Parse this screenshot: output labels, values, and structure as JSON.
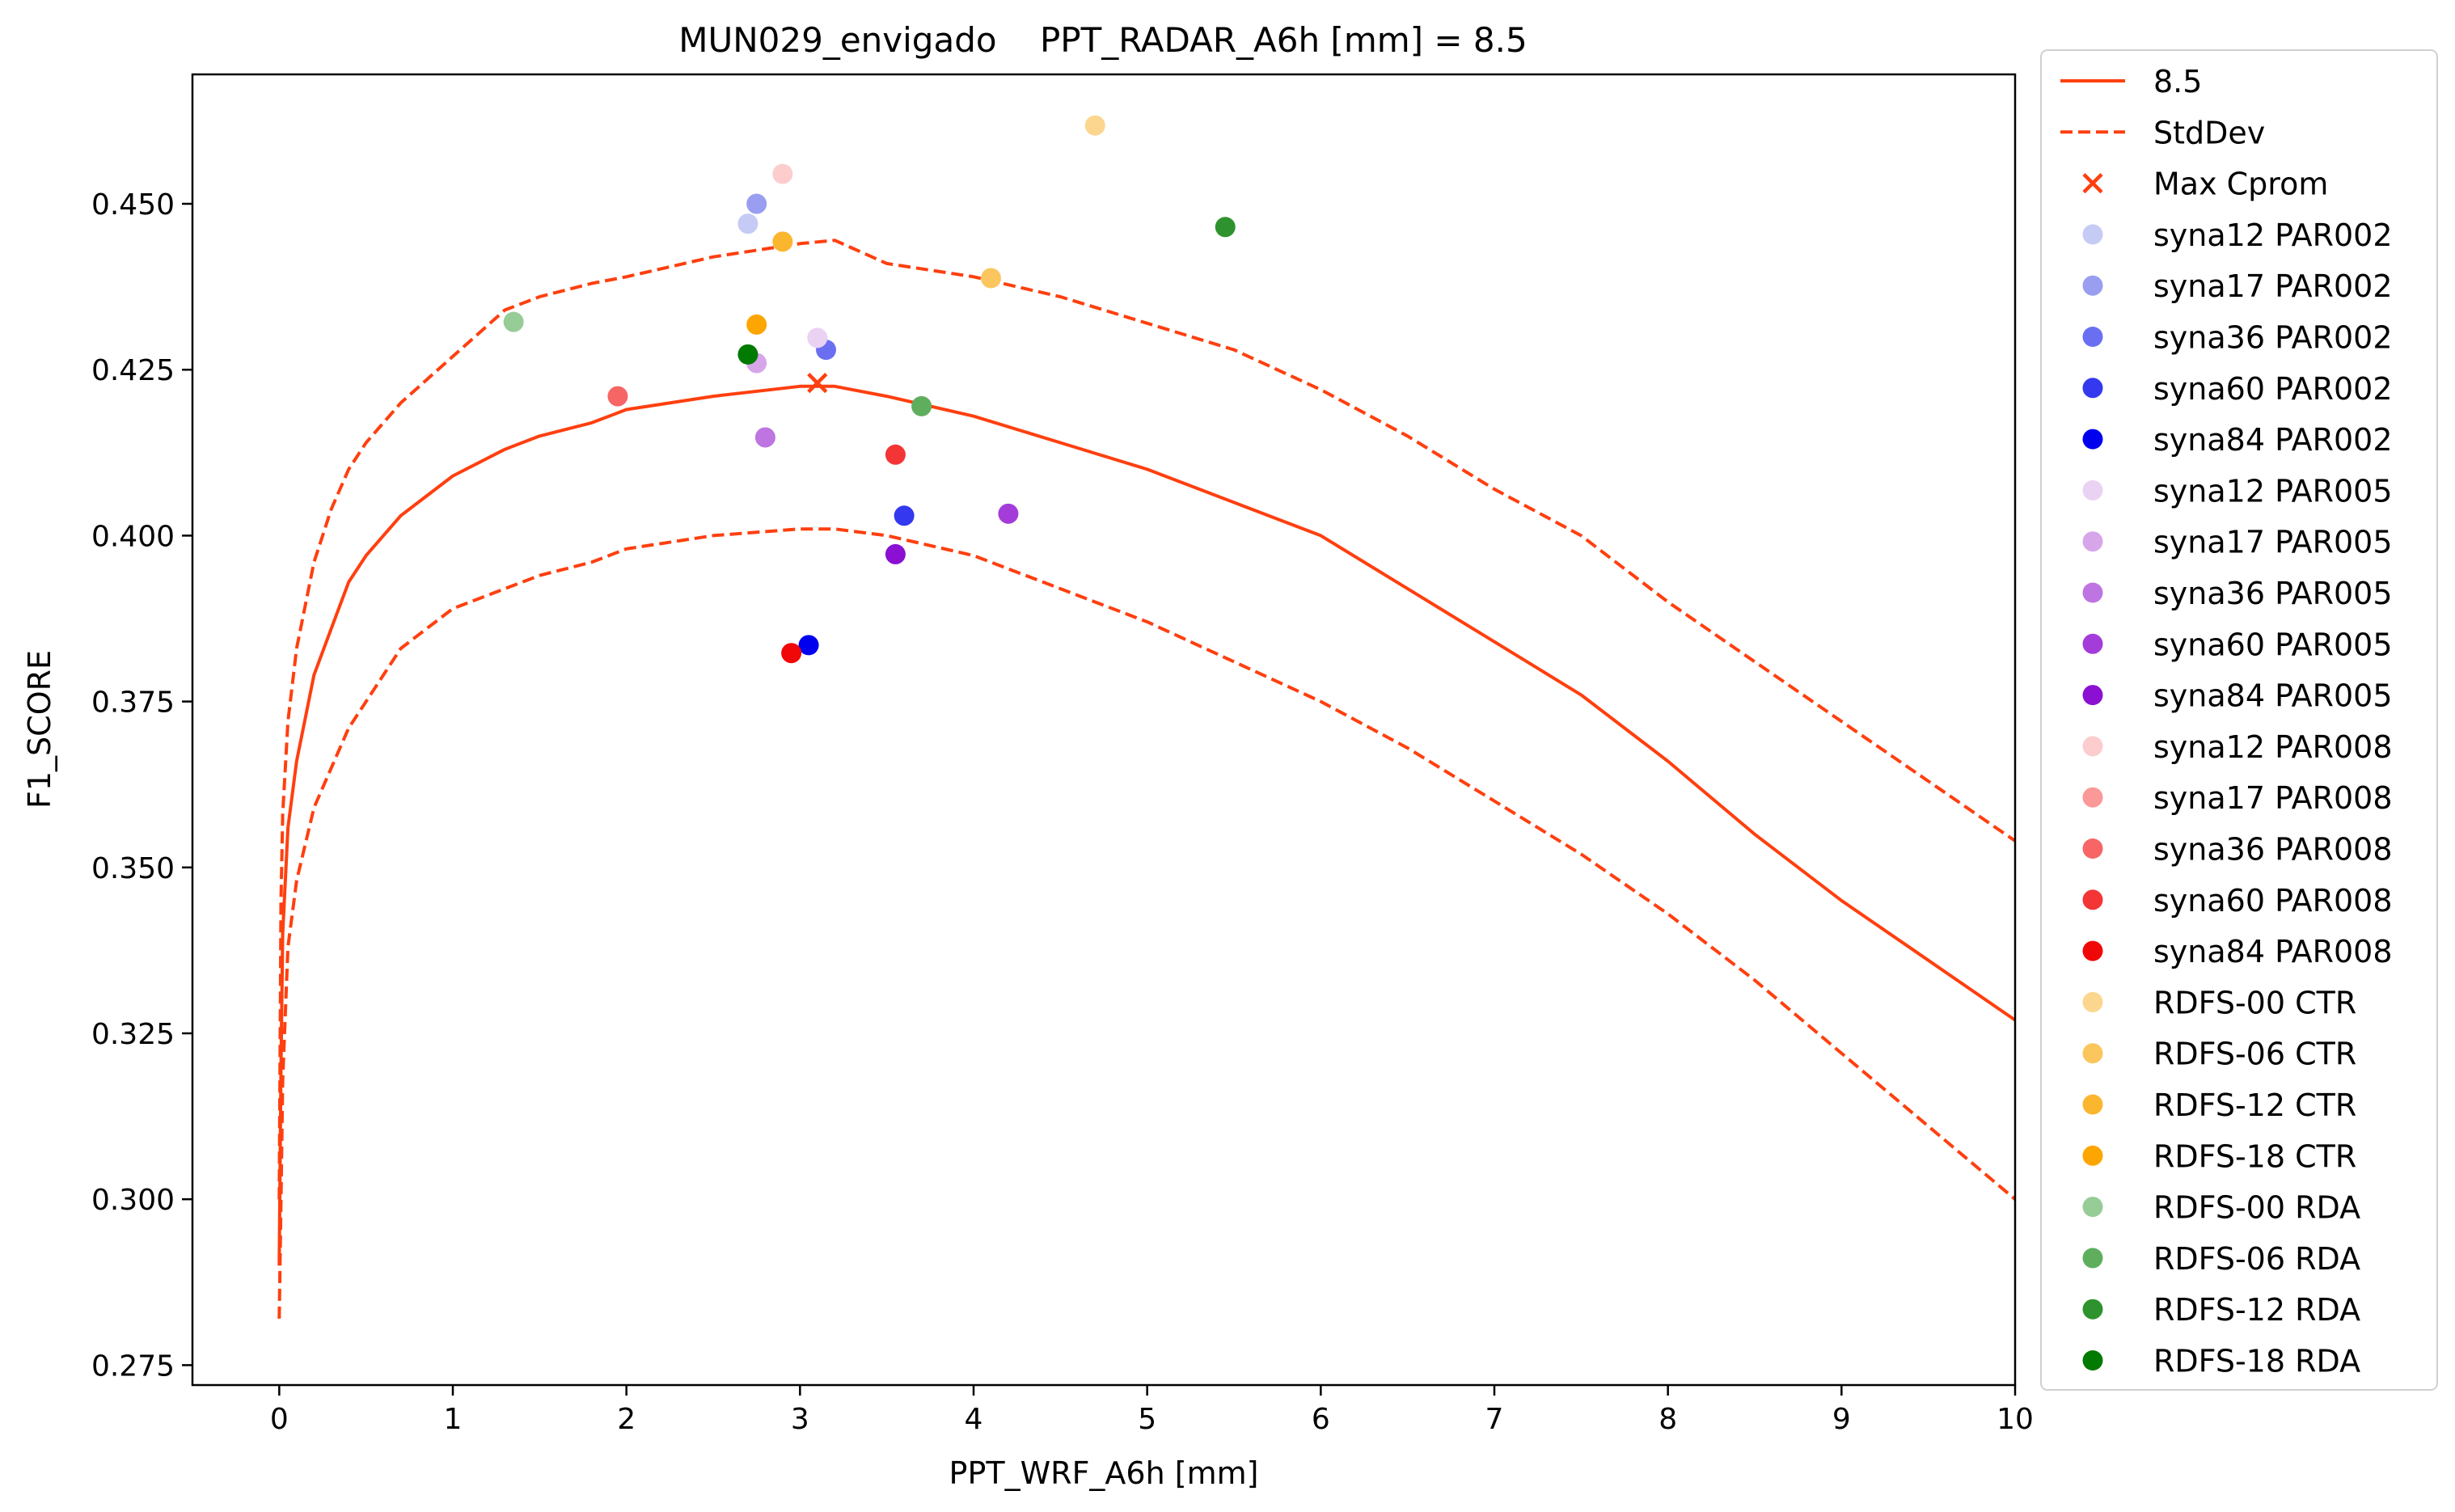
{
  "chart_data": {
    "type": "line",
    "title": "MUN029_envigado    PPT_RADAR_A6h [mm] = 8.5",
    "xlabel": "PPT_WRF_A6h [mm]",
    "ylabel": "F1_SCORE",
    "xlim": [
      -0.5,
      10
    ],
    "ylim": [
      0.272,
      0.4695
    ],
    "xticks": [
      0,
      1,
      2,
      3,
      4,
      5,
      6,
      7,
      8,
      9,
      10
    ],
    "xtick_labels": [
      "0",
      "1",
      "2",
      "3",
      "4",
      "5",
      "6",
      "7",
      "8",
      "9",
      "10"
    ],
    "yticks": [
      0.275,
      0.3,
      0.325,
      0.35,
      0.375,
      0.4,
      0.425,
      0.45
    ],
    "ytick_labels": [
      "0.275",
      "0.300",
      "0.325",
      "0.350",
      "0.375",
      "0.400",
      "0.425",
      "0.450"
    ],
    "grid": false,
    "legend_position": "outside-right",
    "accent_color": "#ff3f0f",
    "series": [
      {
        "name": "8.5",
        "kind": "line",
        "style": "solid",
        "color": "#ff3f0f",
        "x": [
          0,
          0.01,
          0.02,
          0.05,
          0.1,
          0.2,
          0.3,
          0.4,
          0.5,
          0.7,
          1.0,
          1.3,
          1.5,
          1.8,
          2.0,
          2.5,
          3.0,
          3.2,
          3.5,
          4.0,
          4.5,
          5.0,
          5.5,
          6.0,
          6.5,
          7.0,
          7.5,
          8.0,
          8.5,
          9.0,
          9.5,
          10.0
        ],
        "y": [
          0.29,
          0.32,
          0.34,
          0.356,
          0.366,
          0.379,
          0.386,
          0.393,
          0.397,
          0.403,
          0.409,
          0.413,
          0.415,
          0.417,
          0.419,
          0.421,
          0.4225,
          0.4225,
          0.421,
          0.418,
          0.414,
          0.41,
          0.405,
          0.4,
          0.392,
          0.384,
          0.376,
          0.366,
          0.355,
          0.345,
          0.336,
          0.327
        ]
      },
      {
        "name": "StdDev",
        "kind": "line",
        "style": "dashed",
        "color": "#ff3f0f",
        "x": [
          0,
          0.01,
          0.02,
          0.05,
          0.1,
          0.2,
          0.3,
          0.4,
          0.5,
          0.7,
          1.0,
          1.3,
          1.5,
          1.8,
          2.0,
          2.5,
          3.0,
          3.2,
          3.5,
          4.0,
          4.5,
          5.0,
          5.5,
          6.0,
          6.5,
          7.0,
          7.5,
          8.0,
          8.5,
          9.0,
          9.5,
          10.0
        ],
        "y": [
          0.3,
          0.345,
          0.358,
          0.372,
          0.383,
          0.396,
          0.404,
          0.41,
          0.414,
          0.42,
          0.427,
          0.434,
          0.436,
          0.438,
          0.439,
          0.442,
          0.444,
          0.4445,
          0.441,
          0.439,
          0.436,
          0.432,
          0.428,
          0.422,
          0.415,
          0.407,
          0.4,
          0.39,
          0.381,
          0.372,
          0.363,
          0.354
        ]
      },
      {
        "name": "StdDev lower",
        "kind": "line",
        "style": "dashed",
        "color": "#ff3f0f",
        "x": [
          0,
          0.01,
          0.02,
          0.05,
          0.1,
          0.2,
          0.3,
          0.4,
          0.5,
          0.7,
          1.0,
          1.3,
          1.5,
          1.8,
          2.0,
          2.5,
          3.0,
          3.2,
          3.5,
          4.0,
          4.5,
          5.0,
          5.5,
          6.0,
          6.5,
          7.0,
          7.5,
          8.0,
          8.5,
          9.0,
          9.5,
          10.0
        ],
        "y": [
          0.282,
          0.3,
          0.318,
          0.338,
          0.348,
          0.359,
          0.365,
          0.371,
          0.375,
          0.383,
          0.389,
          0.392,
          0.394,
          0.396,
          0.398,
          0.4,
          0.401,
          0.401,
          0.4,
          0.397,
          0.392,
          0.387,
          0.381,
          0.375,
          0.368,
          0.36,
          0.352,
          0.343,
          0.333,
          0.322,
          0.311,
          0.3
        ]
      },
      {
        "name": "Max Cprom",
        "kind": "marker-x",
        "color": "#ff3f0f",
        "x": [
          3.1
        ],
        "y": [
          0.423
        ]
      },
      {
        "name": "syna12 PAR002",
        "kind": "point",
        "color": "#c6cbf6",
        "x": [
          2.7
        ],
        "y": [
          0.447
        ]
      },
      {
        "name": "syna17 PAR002",
        "kind": "point",
        "color": "#9a9ef0",
        "x": [
          2.75
        ],
        "y": [
          0.45
        ]
      },
      {
        "name": "syna36 PAR002",
        "kind": "point",
        "color": "#6a6ff2",
        "x": [
          3.15
        ],
        "y": [
          0.428
        ]
      },
      {
        "name": "syna60 PAR002",
        "kind": "point",
        "color": "#3438ee",
        "x": [
          3.6
        ],
        "y": [
          0.403
        ]
      },
      {
        "name": "syna84 PAR002",
        "kind": "point",
        "color": "#0000ee",
        "x": [
          3.05
        ],
        "y": [
          0.3835
        ]
      },
      {
        "name": "syna12 PAR005",
        "kind": "point",
        "color": "#ead2f3",
        "x": [
          3.1
        ],
        "y": [
          0.4298
        ]
      },
      {
        "name": "syna17 PAR005",
        "kind": "point",
        "color": "#d7a6ea",
        "x": [
          2.75
        ],
        "y": [
          0.426
        ]
      },
      {
        "name": "syna36 PAR005",
        "kind": "point",
        "color": "#be74e1",
        "x": [
          2.8
        ],
        "y": [
          0.4148
        ]
      },
      {
        "name": "syna60 PAR005",
        "kind": "point",
        "color": "#a43cda",
        "x": [
          4.2
        ],
        "y": [
          0.4033
        ]
      },
      {
        "name": "syna84 PAR005",
        "kind": "point",
        "color": "#8b10d2",
        "x": [
          3.55
        ],
        "y": [
          0.3972
        ]
      },
      {
        "name": "syna12 PAR008",
        "kind": "point",
        "color": "#fdcdcd",
        "x": [
          2.9
        ],
        "y": [
          0.4545
        ]
      },
      {
        "name": "syna17 PAR008",
        "kind": "point",
        "color": "#fb9898",
        "x": [],
        "y": []
      },
      {
        "name": "syna36 PAR008",
        "kind": "point",
        "color": "#f76565",
        "x": [
          1.95
        ],
        "y": [
          0.421
        ]
      },
      {
        "name": "syna60 PAR008",
        "kind": "point",
        "color": "#f33535",
        "x": [
          3.55
        ],
        "y": [
          0.4122
        ]
      },
      {
        "name": "syna84 PAR008",
        "kind": "point",
        "color": "#f00808",
        "x": [
          2.95
        ],
        "y": [
          0.3823
        ]
      },
      {
        "name": "RDFS-00 CTR",
        "kind": "point",
        "color": "#fcd68f",
        "x": [
          4.7
        ],
        "y": [
          0.4618
        ]
      },
      {
        "name": "RDFS-06 CTR",
        "kind": "point",
        "color": "#fbc65e",
        "x": [
          4.1
        ],
        "y": [
          0.4388
        ]
      },
      {
        "name": "RDFS-12 CTR",
        "kind": "point",
        "color": "#fbb630",
        "x": [
          2.9
        ],
        "y": [
          0.4443
        ]
      },
      {
        "name": "RDFS-18 CTR",
        "kind": "point",
        "color": "#fda500",
        "x": [
          2.75
        ],
        "y": [
          0.4318
        ]
      },
      {
        "name": "RDFS-00 RDA",
        "kind": "point",
        "color": "#96cc96",
        "x": [
          1.35
        ],
        "y": [
          0.4322
        ]
      },
      {
        "name": "RDFS-06 RDA",
        "kind": "point",
        "color": "#5eae5e",
        "x": [
          3.7
        ],
        "y": [
          0.4195
        ]
      },
      {
        "name": "RDFS-12 RDA",
        "kind": "point",
        "color": "#2e932e",
        "x": [
          5.45
        ],
        "y": [
          0.4465
        ]
      },
      {
        "name": "RDFS-18 RDA",
        "kind": "point",
        "color": "#007a00",
        "x": [
          2.7
        ],
        "y": [
          0.4273
        ]
      }
    ],
    "legend_entries": [
      {
        "label": "8.5",
        "kind": "line-solid",
        "color": "#ff3f0f"
      },
      {
        "label": "StdDev",
        "kind": "line-dashed",
        "color": "#ff3f0f"
      },
      {
        "label": "Max Cprom",
        "kind": "marker-x",
        "color": "#ff3f0f"
      },
      {
        "label": "syna12 PAR002",
        "kind": "point",
        "color": "#c6cbf6"
      },
      {
        "label": "syna17 PAR002",
        "kind": "point",
        "color": "#9a9ef0"
      },
      {
        "label": "syna36 PAR002",
        "kind": "point",
        "color": "#6a6ff2"
      },
      {
        "label": "syna60 PAR002",
        "kind": "point",
        "color": "#3438ee"
      },
      {
        "label": "syna84 PAR002",
        "kind": "point",
        "color": "#0000ee"
      },
      {
        "label": "syna12 PAR005",
        "kind": "point",
        "color": "#ead2f3"
      },
      {
        "label": "syna17 PAR005",
        "kind": "point",
        "color": "#d7a6ea"
      },
      {
        "label": "syna36 PAR005",
        "kind": "point",
        "color": "#be74e1"
      },
      {
        "label": "syna60 PAR005",
        "kind": "point",
        "color": "#a43cda"
      },
      {
        "label": "syna84 PAR005",
        "kind": "point",
        "color": "#8b10d2"
      },
      {
        "label": "syna12 PAR008",
        "kind": "point",
        "color": "#fdcdcd"
      },
      {
        "label": "syna17 PAR008",
        "kind": "point",
        "color": "#fb9898"
      },
      {
        "label": "syna36 PAR008",
        "kind": "point",
        "color": "#f76565"
      },
      {
        "label": "syna60 PAR008",
        "kind": "point",
        "color": "#f33535"
      },
      {
        "label": "syna84 PAR008",
        "kind": "point",
        "color": "#f00808"
      },
      {
        "label": " RDFS-00 CTR",
        "kind": "point",
        "color": "#fcd68f"
      },
      {
        "label": " RDFS-06 CTR",
        "kind": "point",
        "color": "#fbc65e"
      },
      {
        "label": " RDFS-12 CTR",
        "kind": "point",
        "color": "#fbb630"
      },
      {
        "label": " RDFS-18 CTR",
        "kind": "point",
        "color": "#fda500"
      },
      {
        "label": " RDFS-00 RDA",
        "kind": "point",
        "color": "#96cc96"
      },
      {
        "label": " RDFS-06 RDA",
        "kind": "point",
        "color": "#5eae5e"
      },
      {
        "label": " RDFS-12 RDA",
        "kind": "point",
        "color": "#2e932e"
      },
      {
        "label": " RDFS-18 RDA",
        "kind": "point",
        "color": "#007a00"
      }
    ]
  }
}
